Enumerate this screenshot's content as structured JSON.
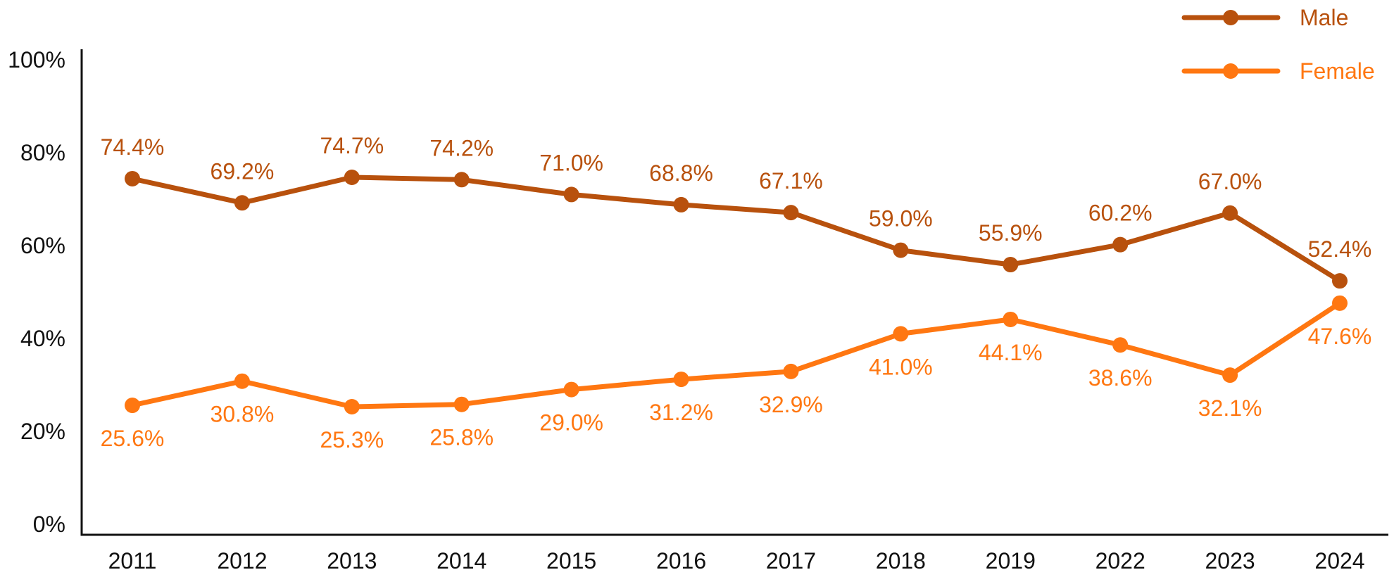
{
  "chart_data": {
    "type": "line",
    "title": "",
    "xlabel": "",
    "ylabel": "",
    "categories": [
      "2011",
      "2012",
      "2013",
      "2014",
      "2015",
      "2016",
      "2017",
      "2018",
      "2019",
      "2022",
      "2023",
      "2024"
    ],
    "ylim": [
      0,
      100
    ],
    "y_ticks": [
      {
        "value": 0,
        "label": "0%"
      },
      {
        "value": 20,
        "label": "20%"
      },
      {
        "value": 40,
        "label": "40%"
      },
      {
        "value": 60,
        "label": "60%"
      },
      {
        "value": 80,
        "label": "80%"
      },
      {
        "value": 100,
        "label": "100%"
      }
    ],
    "grid": false,
    "legend_position": "top-right",
    "series": [
      {
        "name": "Male",
        "color": "#B8510D",
        "values": [
          74.4,
          69.2,
          74.7,
          74.2,
          71.0,
          68.8,
          67.1,
          59.0,
          55.9,
          60.2,
          67.0,
          52.4
        ],
        "labels": [
          "74.4%",
          "69.2%",
          "74.7%",
          "74.2%",
          "71.0%",
          "68.8%",
          "67.1%",
          "59.0%",
          "55.9%",
          "60.2%",
          "67.0%",
          "52.4%"
        ],
        "label_placement": "above"
      },
      {
        "name": "Female",
        "color": "#FF7711",
        "values": [
          25.6,
          30.8,
          25.3,
          25.8,
          29.0,
          31.2,
          32.9,
          41.0,
          44.1,
          38.6,
          32.1,
          47.6
        ],
        "labels": [
          "25.6%",
          "30.8%",
          "25.3%",
          "25.8%",
          "29.0%",
          "31.2%",
          "32.9%",
          "41.0%",
          "44.1%",
          "38.6%",
          "32.1%",
          "47.6%"
        ],
        "label_placement": "below"
      }
    ]
  }
}
